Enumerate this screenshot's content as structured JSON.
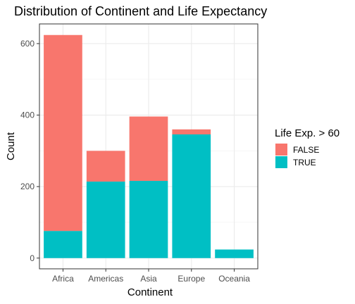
{
  "chart_data": {
    "type": "bar",
    "stacked": true,
    "title": "Distribution of Continent and Life Expectancy",
    "xlabel": "Continent",
    "ylabel": "Count",
    "categories": [
      "Africa",
      "Americas",
      "Asia",
      "Europe",
      "Oceania"
    ],
    "series": [
      {
        "name": "FALSE",
        "color": "#F8766D",
        "values": [
          548,
          86,
          180,
          14,
          0
        ]
      },
      {
        "name": "TRUE",
        "color": "#00BFC4",
        "values": [
          76,
          214,
          216,
          346,
          24
        ]
      }
    ],
    "ylim": [
      0,
      650
    ],
    "yticks": [
      0,
      200,
      400,
      600
    ],
    "grid": true,
    "legend": {
      "title": "Life Exp. > 60",
      "position": "right"
    }
  }
}
